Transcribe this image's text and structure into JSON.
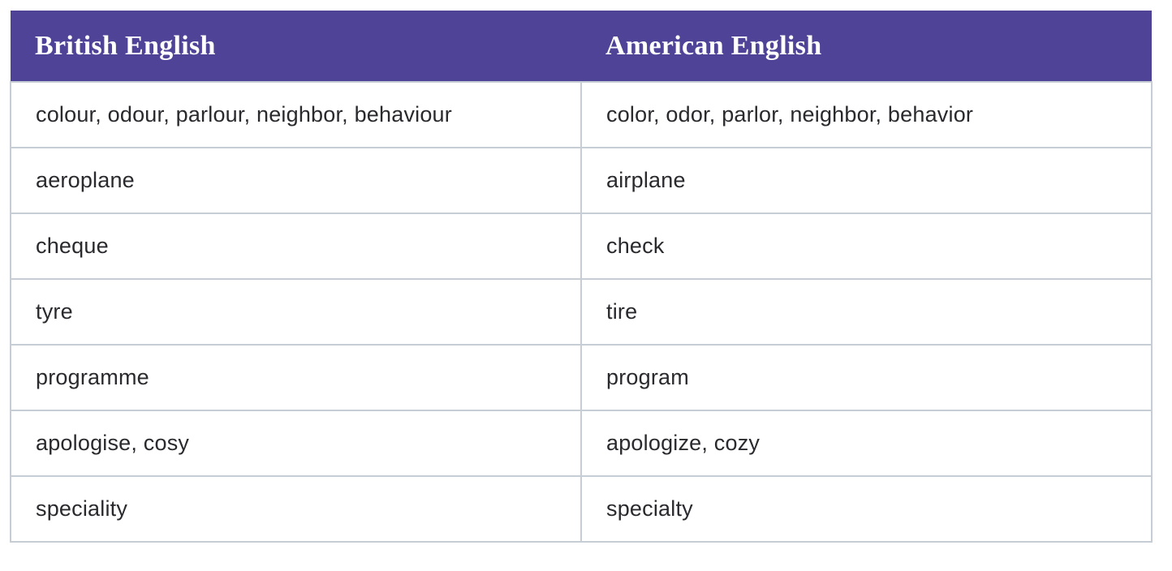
{
  "colors": {
    "page_bg": "#ffffff",
    "header_bg": "#4e4397",
    "header_text": "#ffffff",
    "border": "#c6cdd5",
    "body_text": "#2a2a2e"
  },
  "table": {
    "columns": [
      {
        "label": "British English"
      },
      {
        "label": "American English"
      }
    ],
    "rows": [
      {
        "british": "colour, odour, parlour, neighbor, behaviour",
        "american": "color, odor, parlor, neighbor, behavior"
      },
      {
        "british": "aeroplane",
        "american": "airplane"
      },
      {
        "british": "cheque",
        "american": "check"
      },
      {
        "british": "tyre",
        "american": "tire"
      },
      {
        "british": "programme",
        "american": "program"
      },
      {
        "british": "apologise, cosy",
        "american": "apologize, cozy"
      },
      {
        "british": "speciality",
        "american": "specialty"
      }
    ]
  }
}
